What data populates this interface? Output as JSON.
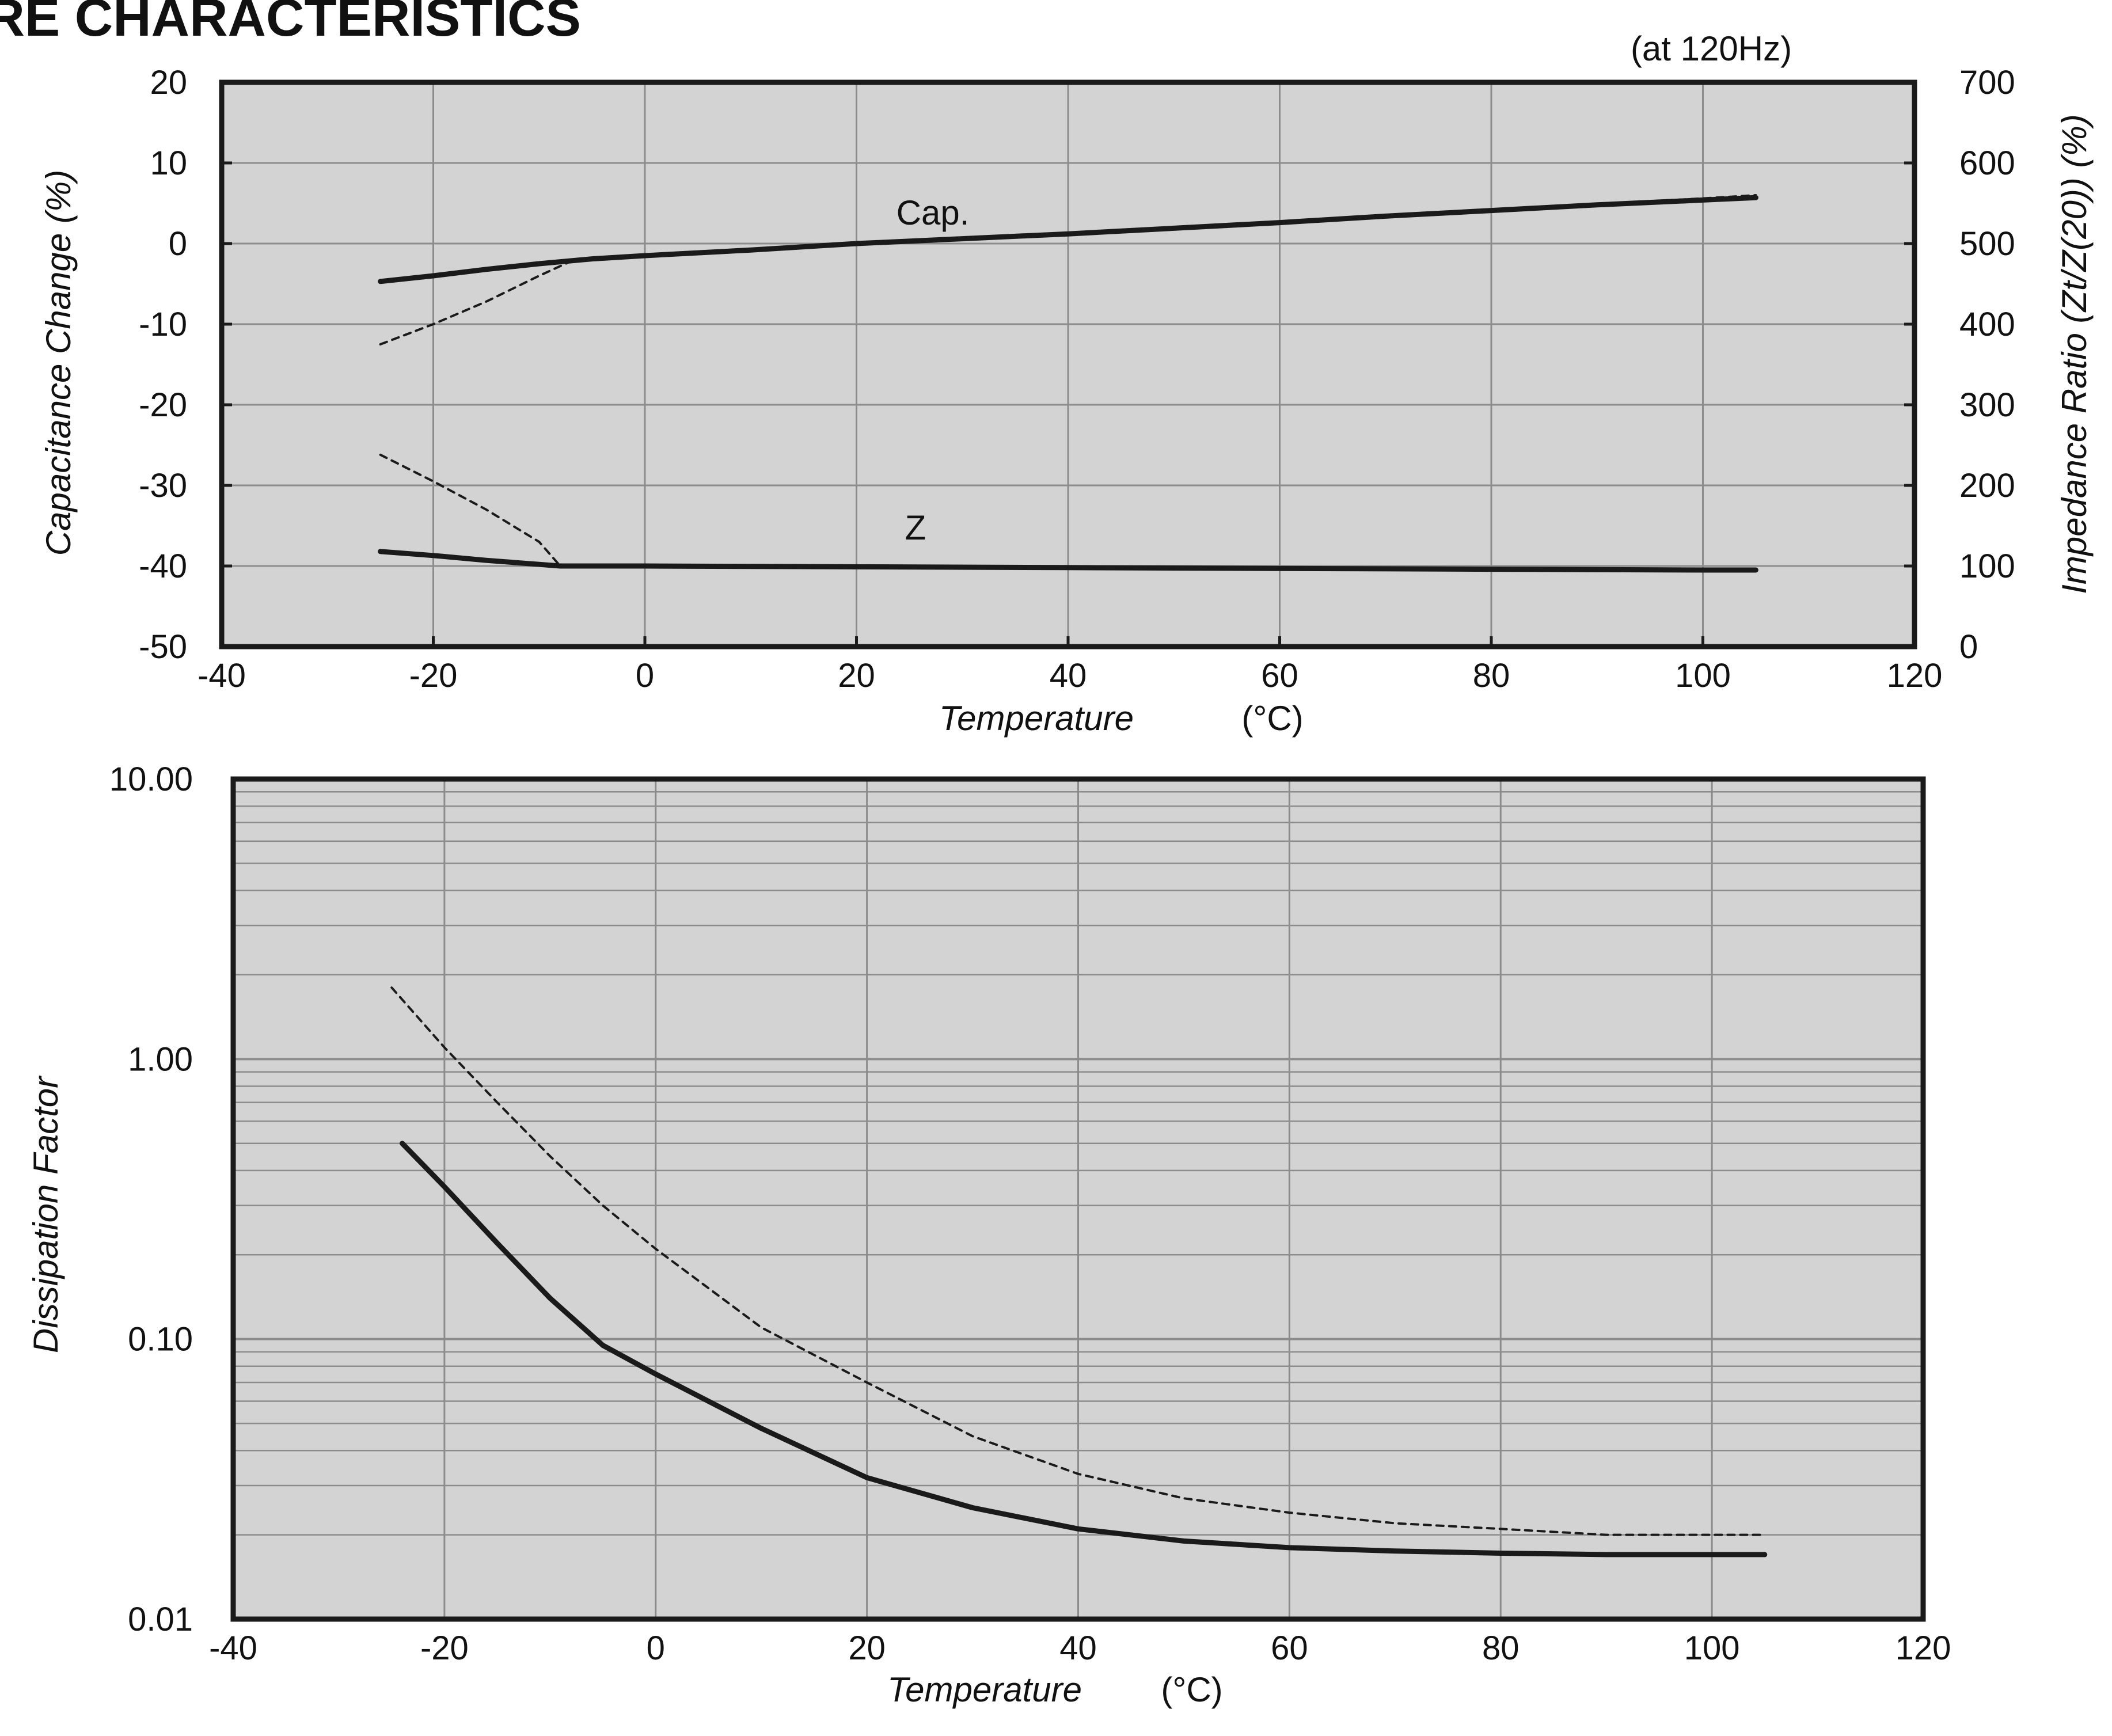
{
  "page": {
    "title": "URE CHARACTERISTICS",
    "condition": "(at 120Hz)"
  },
  "colors": {
    "plot_bg": "#d3d3d3",
    "gridline": "#8c8c8c",
    "line": "#1a1a1a"
  },
  "chart_data": [
    {
      "type": "line",
      "xlabel": "Temperature",
      "xunit": "(°C)",
      "ylabel": "Capacitance Change  (%)",
      "y2label": "Impedance Ratio  (Zt/Z(20))  (%)",
      "xlim": [
        -40,
        120
      ],
      "ylim": [
        -50,
        20
      ],
      "y2lim": [
        0,
        700
      ],
      "x_ticks": [
        "-40",
        "-20",
        "0",
        "20",
        "40",
        "60",
        "80",
        "100",
        "120"
      ],
      "y_ticks": [
        "20",
        "10",
        "0",
        "-10",
        "-20",
        "-30",
        "-40",
        "-50"
      ],
      "y2_ticks": [
        "700",
        "600",
        "500",
        "400",
        "300",
        "200",
        "100",
        "0"
      ],
      "grid": true,
      "annotations": [
        "Cap.",
        "Z"
      ],
      "series": [
        {
          "axis": "left",
          "style": "solid",
          "x": [
            -25,
            -20,
            -15,
            -10,
            -5,
            0,
            10,
            20,
            30,
            40,
            50,
            60,
            70,
            80,
            90,
            100,
            105
          ],
          "y": [
            -4.7,
            -4.0,
            -3.2,
            -2.5,
            -1.9,
            -1.5,
            -0.8,
            0,
            0.6,
            1.2,
            1.9,
            2.6,
            3.4,
            4.1,
            4.8,
            5.4,
            5.7
          ]
        },
        {
          "axis": "left",
          "style": "dashed",
          "x": [
            -25,
            -20,
            -15,
            -10,
            -7,
            -5,
            0,
            10,
            20,
            30,
            40,
            50,
            60,
            70,
            80,
            90,
            100,
            105
          ],
          "y": [
            -12.5,
            -10.0,
            -7.2,
            -4.0,
            -2.2,
            -1.9,
            -1.5,
            -0.8,
            0,
            0.6,
            1.2,
            1.9,
            2.6,
            3.4,
            4.1,
            4.9,
            5.6,
            6.0
          ]
        },
        {
          "axis": "right",
          "style": "solid",
          "x": [
            -25,
            -20,
            -15,
            -10,
            -8,
            0,
            20,
            40,
            60,
            80,
            100,
            105
          ],
          "y": [
            118,
            113,
            107,
            102,
            100,
            100,
            99,
            98,
            97,
            96,
            95,
            95
          ]
        },
        {
          "axis": "right",
          "style": "dashed",
          "x": [
            -25,
            -20,
            -15,
            -10,
            -8
          ],
          "y": [
            238,
            205,
            170,
            130,
            100
          ]
        }
      ]
    },
    {
      "type": "line",
      "xlabel": "Temperature",
      "xunit": "(°C)",
      "ylabel": "Dissipation Factor",
      "xlim": [
        -40,
        120
      ],
      "ylim": [
        0.01,
        10
      ],
      "yscale": "log",
      "x_ticks": [
        "-40",
        "-20",
        "0",
        "20",
        "40",
        "60",
        "80",
        "100",
        "120"
      ],
      "y_ticks": [
        "10.00",
        "1.00",
        "0.10",
        "0.01"
      ],
      "grid": true,
      "series": [
        {
          "style": "solid",
          "x": [
            -24,
            -20,
            -15,
            -10,
            -5,
            0,
            5,
            10,
            20,
            30,
            40,
            50,
            60,
            70,
            80,
            90,
            100,
            105
          ],
          "y": [
            0.5,
            0.35,
            0.22,
            0.14,
            0.095,
            0.075,
            0.06,
            0.048,
            0.032,
            0.025,
            0.021,
            0.019,
            0.018,
            0.0175,
            0.0172,
            0.017,
            0.017,
            0.017
          ]
        },
        {
          "style": "dashed",
          "x": [
            -25,
            -20,
            -15,
            -10,
            -5,
            0,
            10,
            20,
            30,
            40,
            50,
            60,
            70,
            80,
            90,
            100,
            105
          ],
          "y": [
            1.8,
            1.1,
            0.7,
            0.45,
            0.3,
            0.21,
            0.11,
            0.07,
            0.045,
            0.033,
            0.027,
            0.024,
            0.022,
            0.021,
            0.02,
            0.02,
            0.02
          ]
        }
      ]
    }
  ]
}
